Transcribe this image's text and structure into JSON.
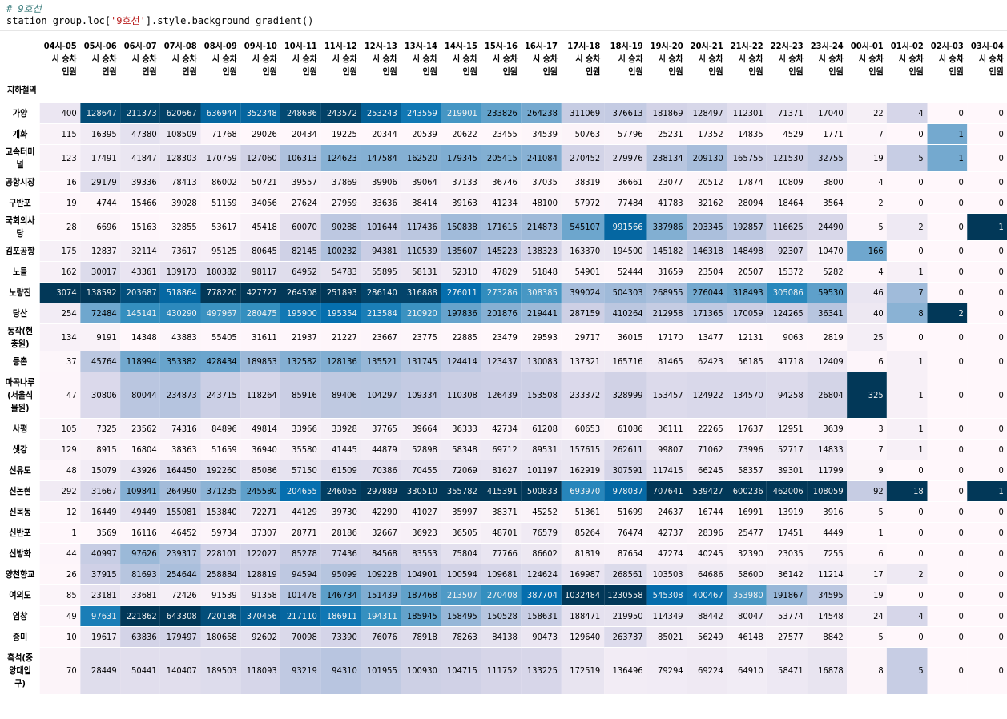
{
  "cell": {
    "comment": "# 9호선",
    "code_prefix": "station_group.loc[",
    "code_string": "'9호선'",
    "code_suffix": "].style.background_gradient()"
  },
  "table": {
    "index_name": "지하철역",
    "columns": [
      [
        "04시-05",
        "시 승차",
        "인원"
      ],
      [
        "05시-06",
        "시 승차",
        "인원"
      ],
      [
        "06시-07",
        "시 승차",
        "인원"
      ],
      [
        "07시-08",
        "시 승차",
        "인원"
      ],
      [
        "08시-09",
        "시 승차",
        "인원"
      ],
      [
        "09시-10",
        "시 승차",
        "인원"
      ],
      [
        "10시-11",
        "시 승차",
        "인원"
      ],
      [
        "11시-12",
        "시 승차",
        "인원"
      ],
      [
        "12시-13",
        "시 승차",
        "인원"
      ],
      [
        "13시-14",
        "시 승차",
        "인원"
      ],
      [
        "14시-15",
        "시 승차",
        "인원"
      ],
      [
        "15시-16",
        "시 승차",
        "인원"
      ],
      [
        "16시-17",
        "시 승차",
        "인원"
      ],
      [
        "17시-18",
        "시 승차",
        "인원"
      ],
      [
        "18시-19",
        "시 승차",
        "인원"
      ],
      [
        "19시-20",
        "시 승차",
        "인원"
      ],
      [
        "20시-21",
        "시 승차",
        "인원"
      ],
      [
        "21시-22",
        "시 승차",
        "인원"
      ],
      [
        "22시-23",
        "시 승차",
        "인원"
      ],
      [
        "23시-24",
        "시 승차",
        "인원"
      ],
      [
        "00시-01",
        "시 승차",
        "인원"
      ],
      [
        "01시-02",
        "시 승차",
        "인원"
      ],
      [
        "02시-03",
        "시 승차",
        "인원"
      ],
      [
        "03시-04",
        "시 승차",
        "인원"
      ]
    ],
    "rows": [
      {
        "station": [
          "가양"
        ],
        "values": [
          400,
          128647,
          211373,
          620667,
          636944,
          352348,
          248686,
          243572,
          253243,
          243559,
          219901,
          233826,
          264238,
          311069,
          376613,
          181869,
          128497,
          112301,
          71371,
          17040,
          22,
          4,
          0,
          0
        ]
      },
      {
        "station": [
          "개화"
        ],
        "values": [
          115,
          16395,
          47380,
          108509,
          71768,
          29026,
          20434,
          19225,
          20344,
          20539,
          20622,
          23455,
          34539,
          50763,
          57796,
          25231,
          17352,
          14835,
          4529,
          1771,
          7,
          0,
          1,
          0
        ]
      },
      {
        "station": [
          "고속터미",
          "널"
        ],
        "values": [
          123,
          17491,
          41847,
          128303,
          170759,
          127060,
          106313,
          124623,
          147584,
          162520,
          179345,
          205415,
          241084,
          270452,
          279976,
          238134,
          209130,
          165755,
          121530,
          32755,
          19,
          5,
          1,
          0
        ]
      },
      {
        "station": [
          "공항시장"
        ],
        "values": [
          16,
          29179,
          39336,
          78413,
          86002,
          50721,
          39557,
          37869,
          39906,
          39064,
          37133,
          36746,
          37035,
          38319,
          36661,
          23077,
          20512,
          17874,
          10809,
          3800,
          4,
          0,
          0,
          0
        ]
      },
      {
        "station": [
          "구반포"
        ],
        "values": [
          19,
          4744,
          15466,
          39028,
          51159,
          34056,
          27624,
          27959,
          33636,
          38414,
          39163,
          41234,
          48100,
          57972,
          77484,
          41783,
          32162,
          28094,
          18464,
          3564,
          2,
          0,
          0,
          0
        ]
      },
      {
        "station": [
          "국회의사",
          "당"
        ],
        "values": [
          28,
          6696,
          15163,
          32855,
          53617,
          45418,
          60070,
          90288,
          101644,
          117436,
          150838,
          171615,
          214873,
          545107,
          991566,
          337986,
          203345,
          192857,
          116625,
          24490,
          5,
          2,
          0,
          1
        ]
      },
      {
        "station": [
          "김포공항"
        ],
        "values": [
          175,
          12837,
          32114,
          73617,
          95125,
          80645,
          82145,
          100232,
          94381,
          110539,
          135607,
          145223,
          138323,
          163370,
          194500,
          145182,
          146318,
          148498,
          92307,
          10470,
          166,
          0,
          0,
          0
        ]
      },
      {
        "station": [
          "노들"
        ],
        "values": [
          162,
          30017,
          43361,
          139173,
          180382,
          98117,
          64952,
          54783,
          55895,
          58131,
          52310,
          47829,
          51848,
          54901,
          52444,
          31659,
          23504,
          20507,
          15372,
          5282,
          4,
          1,
          0,
          0
        ]
      },
      {
        "station": [
          "노량진"
        ],
        "values": [
          3074,
          138592,
          203687,
          518864,
          778220,
          427727,
          264508,
          251893,
          286140,
          316888,
          276011,
          273286,
          308385,
          399024,
          504303,
          268955,
          276044,
          318493,
          305086,
          59530,
          46,
          7,
          0,
          0
        ]
      },
      {
        "station": [
          "당산"
        ],
        "values": [
          254,
          72484,
          145141,
          430290,
          497967,
          280475,
          195900,
          195354,
          213584,
          210920,
          197836,
          201876,
          219441,
          287159,
          410264,
          212958,
          171365,
          170059,
          124265,
          36341,
          40,
          8,
          2,
          0
        ]
      },
      {
        "station": [
          "동작(현",
          "충원)"
        ],
        "values": [
          134,
          9191,
          14348,
          43883,
          55405,
          31611,
          21937,
          21227,
          23667,
          23775,
          22885,
          23479,
          29593,
          29717,
          36015,
          17170,
          13477,
          12131,
          9063,
          2819,
          25,
          0,
          0,
          0
        ]
      },
      {
        "station": [
          "등촌"
        ],
        "values": [
          37,
          45764,
          118994,
          353382,
          428434,
          189853,
          132582,
          128136,
          135521,
          131745,
          124414,
          123437,
          130083,
          137321,
          165716,
          81465,
          62423,
          56185,
          41718,
          12409,
          6,
          1,
          0,
          0
        ]
      },
      {
        "station": [
          "마곡나루",
          "(서울식",
          "물원)"
        ],
        "values": [
          47,
          30806,
          80044,
          234873,
          243715,
          118264,
          85916,
          89406,
          104297,
          109334,
          110308,
          126439,
          153508,
          233372,
          328999,
          153457,
          124922,
          134570,
          94258,
          26804,
          325,
          1,
          0,
          0
        ]
      },
      {
        "station": [
          "사평"
        ],
        "values": [
          105,
          7325,
          23562,
          74316,
          84896,
          49814,
          33966,
          33928,
          37765,
          39664,
          36333,
          42734,
          61208,
          60653,
          61086,
          36111,
          22265,
          17637,
          12951,
          3639,
          3,
          1,
          0,
          0
        ]
      },
      {
        "station": [
          "샛강"
        ],
        "values": [
          129,
          8915,
          16804,
          38363,
          51659,
          36940,
          35580,
          41445,
          44879,
          52898,
          58348,
          69712,
          89531,
          157615,
          262611,
          99807,
          71062,
          73996,
          52717,
          14833,
          7,
          1,
          0,
          0
        ]
      },
      {
        "station": [
          "선유도"
        ],
        "values": [
          48,
          15079,
          43926,
          164450,
          192260,
          85086,
          57150,
          61509,
          70386,
          70455,
          72069,
          81627,
          101197,
          162919,
          307591,
          117415,
          66245,
          58357,
          39301,
          11799,
          9,
          0,
          0,
          0
        ]
      },
      {
        "station": [
          "신논현"
        ],
        "values": [
          292,
          31667,
          109841,
          264990,
          371235,
          245580,
          204655,
          246055,
          297889,
          330510,
          355782,
          415391,
          500833,
          693970,
          978037,
          707641,
          539427,
          600236,
          462006,
          108059,
          92,
          18,
          0,
          1
        ]
      },
      {
        "station": [
          "신목동"
        ],
        "values": [
          12,
          16449,
          49449,
          155081,
          153840,
          72271,
          44129,
          39730,
          42290,
          41027,
          35997,
          38371,
          45252,
          51361,
          51699,
          24637,
          16744,
          16991,
          13919,
          3916,
          5,
          0,
          0,
          0
        ]
      },
      {
        "station": [
          "신반포"
        ],
        "values": [
          1,
          3569,
          16116,
          46452,
          59734,
          37307,
          28771,
          28186,
          32667,
          36923,
          36505,
          48701,
          76579,
          85264,
          76474,
          42737,
          28396,
          25477,
          17451,
          4449,
          1,
          0,
          0,
          0
        ]
      },
      {
        "station": [
          "신방화"
        ],
        "values": [
          44,
          40997,
          97626,
          239317,
          228101,
          122027,
          85278,
          77436,
          84568,
          83553,
          75804,
          77766,
          86602,
          81819,
          87654,
          47274,
          40245,
          32390,
          23035,
          7255,
          6,
          0,
          0,
          0
        ]
      },
      {
        "station": [
          "양천향교"
        ],
        "values": [
          26,
          37915,
          81693,
          254644,
          258884,
          128819,
          94594,
          95099,
          109228,
          104901,
          100594,
          109681,
          124624,
          169987,
          268561,
          103503,
          64686,
          58600,
          36142,
          11214,
          17,
          2,
          0,
          0
        ]
      },
      {
        "station": [
          "여의도"
        ],
        "values": [
          85,
          23181,
          33681,
          72426,
          91539,
          91358,
          101478,
          146734,
          151439,
          187468,
          213507,
          270408,
          387704,
          1032484,
          1230558,
          545308,
          400467,
          353980,
          191867,
          34595,
          19,
          0,
          0,
          0
        ]
      },
      {
        "station": [
          "염창"
        ],
        "values": [
          49,
          97631,
          221862,
          643308,
          720186,
          370456,
          217110,
          186911,
          194311,
          185945,
          158495,
          150528,
          158631,
          188471,
          219950,
          114349,
          88442,
          80047,
          53774,
          14548,
          24,
          4,
          0,
          0
        ]
      },
      {
        "station": [
          "증미"
        ],
        "values": [
          10,
          19617,
          63836,
          179497,
          180658,
          92602,
          70098,
          73390,
          76076,
          78918,
          78263,
          84138,
          90473,
          129640,
          263737,
          85021,
          56249,
          46148,
          27577,
          8842,
          5,
          0,
          0,
          0
        ]
      },
      {
        "station": [
          "흑석(중",
          "앙대입",
          "구)"
        ],
        "values": [
          70,
          28449,
          50441,
          140407,
          189503,
          118093,
          93219,
          94310,
          101955,
          100930,
          104715,
          111752,
          133225,
          172519,
          136496,
          79294,
          69224,
          64910,
          58471,
          16878,
          8,
          5,
          0,
          0
        ]
      }
    ],
    "colormap": {
      "name": "PuBu",
      "stops": [
        "#fff7fb",
        "#ece7f2",
        "#d0d1e6",
        "#a6bddb",
        "#74a9cf",
        "#3690c0",
        "#0570b0",
        "#045a8d",
        "#023858"
      ],
      "light_text": "#f1f1f1",
      "dark_text": "#000000"
    }
  }
}
